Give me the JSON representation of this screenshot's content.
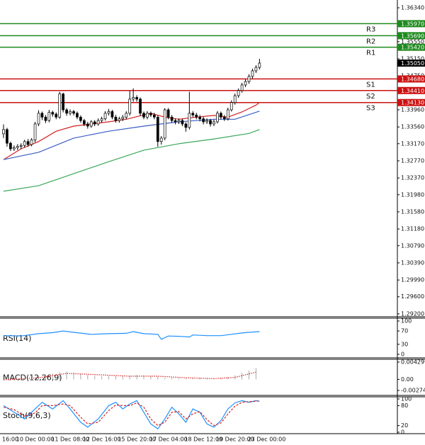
{
  "chart_data": [
    {
      "type": "candlestick",
      "categories": [
        "16:00",
        null,
        null,
        null,
        "10 Dec 00:00",
        null,
        null,
        null,
        null,
        null,
        null,
        null,
        null,
        null,
        "11 Dec 08:00",
        null,
        null,
        null,
        null,
        null,
        null,
        null,
        null,
        "12 Dec 16:00",
        null,
        null,
        null,
        null,
        null,
        null,
        null,
        null,
        null,
        "15 Dec 20:00",
        null,
        null,
        null,
        null,
        null,
        null,
        null,
        null,
        "17 Dec 04:00",
        null,
        null,
        null,
        null,
        null,
        null,
        null,
        null,
        null,
        "18 Dec 12:00",
        null,
        null,
        null,
        null,
        null,
        null,
        null,
        null,
        "19 Dec 20:00",
        null,
        null,
        null,
        null,
        null,
        null,
        null,
        null,
        "23 Dec 00:00",
        null,
        null,
        null
      ],
      "open": [
        1.334,
        1.335,
        1.3318,
        1.3305,
        1.3308,
        1.3311,
        1.3313,
        1.3322,
        1.3315,
        1.3326,
        1.3363,
        1.3388,
        1.3379,
        1.3371,
        1.339,
        1.3386,
        1.3379,
        1.3433,
        1.3396,
        1.3388,
        1.3392,
        1.3388,
        1.3379,
        1.3371,
        1.3363,
        1.3358,
        1.3368,
        1.3363,
        1.3371,
        1.3375,
        1.3388,
        1.3392,
        1.3379,
        1.3371,
        1.3375,
        1.3379,
        1.3388,
        1.3421,
        1.3425,
        1.3421,
        1.3388,
        1.3379,
        1.3388,
        1.3384,
        1.3379,
        1.3322,
        1.333,
        1.3396,
        1.3379,
        1.3371,
        1.3368,
        1.3371,
        1.3363,
        1.3355,
        1.3388,
        1.3384,
        1.3379,
        1.3375,
        1.3368,
        1.3371,
        1.3363,
        1.3368,
        1.3388,
        1.3379,
        1.3375,
        1.3396,
        1.3413,
        1.3429,
        1.3441,
        1.3454,
        1.3462,
        1.3474,
        1.3487,
        1.3495
      ],
      "high": [
        1.3362,
        1.3354,
        1.3322,
        1.3313,
        1.3316,
        1.3318,
        1.3326,
        1.3328,
        1.333,
        1.3368,
        1.3395,
        1.3392,
        1.3384,
        1.3396,
        1.3394,
        1.339,
        1.3438,
        1.3436,
        1.34,
        1.3397,
        1.3396,
        1.3392,
        1.3383,
        1.3375,
        1.3368,
        1.3372,
        1.3372,
        1.3376,
        1.338,
        1.3393,
        1.3398,
        1.3396,
        1.3384,
        1.338,
        1.3384,
        1.3393,
        1.344,
        1.3446,
        1.343,
        1.3425,
        1.3392,
        1.3393,
        1.3392,
        1.3389,
        1.3383,
        1.3335,
        1.34,
        1.34,
        1.3384,
        1.3376,
        1.3376,
        1.3375,
        1.3367,
        1.3438,
        1.3393,
        1.3389,
        1.3384,
        1.338,
        1.3376,
        1.3375,
        1.3373,
        1.3393,
        1.3392,
        1.3384,
        1.3401,
        1.3418,
        1.3434,
        1.3446,
        1.3459,
        1.3467,
        1.3479,
        1.3492,
        1.35,
        1.3515
      ],
      "low": [
        1.333,
        1.331,
        1.33,
        1.33,
        1.3302,
        1.3305,
        1.3308,
        1.331,
        1.3311,
        1.332,
        1.3358,
        1.3372,
        1.3365,
        1.3367,
        1.338,
        1.3374,
        1.3375,
        1.339,
        1.3382,
        1.3383,
        1.3383,
        1.3374,
        1.3366,
        1.3358,
        1.3352,
        1.3354,
        1.3358,
        1.3359,
        1.3366,
        1.3371,
        1.3383,
        1.3374,
        1.3366,
        1.3366,
        1.337,
        1.3374,
        1.3383,
        1.3415,
        1.3415,
        1.3382,
        1.3374,
        1.3374,
        1.3379,
        1.3374,
        1.331,
        1.3315,
        1.3325,
        1.3374,
        1.3366,
        1.3362,
        1.3363,
        1.3358,
        1.3345,
        1.335,
        1.3379,
        1.3374,
        1.3369,
        1.3362,
        1.3363,
        1.3357,
        1.3358,
        1.3364,
        1.3374,
        1.337,
        1.3371,
        1.3392,
        1.3408,
        1.3424,
        1.3436,
        1.3449,
        1.3457,
        1.3469,
        1.3482,
        1.349
      ],
      "close": [
        1.335,
        1.3318,
        1.3305,
        1.3308,
        1.3311,
        1.3313,
        1.3322,
        1.3315,
        1.3326,
        1.3363,
        1.3388,
        1.3379,
        1.3371,
        1.339,
        1.3386,
        1.3379,
        1.3433,
        1.3396,
        1.3388,
        1.3392,
        1.3388,
        1.3379,
        1.3371,
        1.3363,
        1.3358,
        1.3368,
        1.3363,
        1.3371,
        1.3375,
        1.3388,
        1.3392,
        1.3379,
        1.3371,
        1.3375,
        1.3379,
        1.3388,
        1.3421,
        1.3425,
        1.3421,
        1.3388,
        1.3379,
        1.3388,
        1.3384,
        1.3379,
        1.3322,
        1.333,
        1.3396,
        1.3379,
        1.3371,
        1.3368,
        1.3371,
        1.3363,
        1.3355,
        1.3388,
        1.3384,
        1.3379,
        1.3375,
        1.3368,
        1.3371,
        1.3363,
        1.3368,
        1.3388,
        1.3379,
        1.3375,
        1.3396,
        1.3413,
        1.3429,
        1.3441,
        1.3454,
        1.3462,
        1.3474,
        1.3487,
        1.3495,
        1.3505
      ],
      "overlays": [
        {
          "color": "#d42020",
          "x": [
            0,
            5,
            10,
            15,
            20,
            25,
            30,
            35,
            40,
            42,
            46,
            50,
            55,
            60,
            64,
            68,
            72,
            73
          ],
          "values": [
            1.328,
            1.3305,
            1.3322,
            1.3346,
            1.3358,
            1.3363,
            1.3368,
            1.3374,
            1.3384,
            1.3388,
            1.3379,
            1.3374,
            1.3379,
            1.3383,
            1.3379,
            1.3391,
            1.3407,
            1.3413
          ]
        },
        {
          "color": "#3a5fc4",
          "x": [
            0,
            10,
            20,
            30,
            40,
            50,
            60,
            66,
            73
          ],
          "values": [
            1.328,
            1.3297,
            1.333,
            1.3346,
            1.3358,
            1.3368,
            1.3374,
            1.3374,
            1.3393
          ]
        },
        {
          "color": "#3aa85a",
          "x": [
            0,
            10,
            20,
            30,
            40,
            50,
            60,
            70,
            73
          ],
          "values": [
            1.3206,
            1.3219,
            1.3247,
            1.3275,
            1.3302,
            1.3317,
            1.3328,
            1.3341,
            1.335
          ]
        }
      ],
      "levels": [
        {
          "name": "R3",
          "value": 1.3597,
          "label": "1.35970",
          "color": "#1e8a1e"
        },
        {
          "name": "R2",
          "value": 1.3569,
          "label": "1.35690",
          "color": "#1e8a1e"
        },
        {
          "name": "R1",
          "value": 1.3542,
          "label": "1.35420",
          "color": "#1e8a1e"
        },
        {
          "name": "S1",
          "value": 1.3468,
          "label": "1.34680",
          "color": "#cc1111"
        },
        {
          "name": "S2",
          "value": 1.3441,
          "label": "1.34410",
          "color": "#cc1111"
        },
        {
          "name": "S3",
          "value": 1.3413,
          "label": "1.34130",
          "color": "#cc1111"
        }
      ],
      "current_price": {
        "value": 1.3505,
        "label": "1.35050"
      },
      "ylim": [
        1.29133,
        1.36522
      ],
      "yticks": [
        {
          "value": 1.3634,
          "label": "1.36340"
        },
        {
          "value": 1.3555,
          "label": "1.35550"
        },
        {
          "value": 1.3515,
          "label": "1.35150"
        },
        {
          "value": 1.3475,
          "label": "1.34750"
        },
        {
          "value": 1.3396,
          "label": "1.33960"
        },
        {
          "value": 1.3356,
          "label": "1.33560"
        },
        {
          "value": 1.3317,
          "label": "1.33170"
        },
        {
          "value": 1.3277,
          "label": "1.32770"
        },
        {
          "value": 1.3237,
          "label": "1.32370"
        },
        {
          "value": 1.3198,
          "label": "1.31980"
        },
        {
          "value": 1.3158,
          "label": "1.31580"
        },
        {
          "value": 1.3118,
          "label": "1.31180"
        },
        {
          "value": 1.3079,
          "label": "1.30790"
        },
        {
          "value": 1.3039,
          "label": "1.30390"
        },
        {
          "value": 1.2999,
          "label": "1.29990"
        },
        {
          "value": 1.296,
          "label": "1.29600"
        },
        {
          "value": 1.292,
          "label": "1.29200"
        }
      ]
    },
    {
      "type": "line",
      "title": "RSI(14)",
      "series": [
        {
          "color": "#1e90ff",
          "style": "solid",
          "x": [
            0,
            5,
            10,
            14,
            17,
            20,
            25,
            30,
            35,
            37,
            40,
            44,
            45,
            47,
            50,
            53,
            54,
            58,
            62,
            65,
            68,
            70,
            73
          ],
          "values": [
            56,
            55,
            62,
            65,
            70,
            66,
            60,
            62,
            63,
            68,
            62,
            60,
            45,
            55,
            54,
            52,
            58,
            56,
            56,
            60,
            64,
            66,
            68
          ]
        }
      ],
      "ylim": [
        -10.6,
        108.5
      ],
      "yticks": [
        100,
        70,
        30,
        0
      ]
    },
    {
      "type": "macd",
      "title": "MACD(12,26,9)",
      "bars": {
        "color": "#a8a8a8",
        "x": [
          0,
          2,
          4,
          6,
          8,
          10,
          12,
          14,
          16,
          18,
          20,
          22,
          24,
          26,
          28,
          30,
          32,
          34,
          36,
          38,
          40,
          42,
          44,
          46,
          48,
          50,
          52,
          54,
          56,
          58,
          60,
          62,
          64,
          66,
          68,
          70,
          72
        ],
        "values": [
          -0.0002,
          -0.0003,
          -0.0002,
          0,
          0.0003,
          0.0008,
          0.0012,
          0.0015,
          0.0018,
          0.0019,
          0.0017,
          0.0014,
          0.0011,
          0.0009,
          0.0008,
          0.0008,
          0.0008,
          0.0008,
          0.0009,
          0.0011,
          0.0011,
          0.0009,
          0.0007,
          0.0004,
          0.0004,
          0.0003,
          0.0002,
          0.0003,
          0.0003,
          0.0002,
          0.0002,
          0.0003,
          0.0005,
          0.001,
          0.0016,
          0.0022,
          0.0028
        ]
      },
      "series": [
        {
          "color": "#d42020",
          "style": "dotted",
          "x": [
            0,
            10,
            18,
            26,
            36,
            44,
            52,
            60,
            66,
            72
          ],
          "values": [
            -0.0001,
            0.0004,
            0.0015,
            0.0012,
            0.0008,
            0.0008,
            0.0004,
            0.0002,
            0.0005,
            0.0018
          ]
        }
      ],
      "ylim": [
        -0.00398,
        0.005
      ],
      "yticks": [
        0.004299,
        {
          "value": 0,
          "label": "0.00"
        },
        -0.002744
      ]
    },
    {
      "type": "line",
      "title": "Stoch(9,6,3)",
      "series": [
        {
          "color": "#1e90ff",
          "style": "solid",
          "x": [
            0,
            3,
            6,
            9,
            11,
            14,
            17,
            19,
            22,
            24,
            27,
            30,
            32,
            34,
            36,
            38,
            40,
            42,
            44,
            46,
            48,
            50,
            52,
            54,
            56,
            58,
            60,
            62,
            64,
            66,
            68,
            70,
            72,
            73
          ],
          "values": [
            80,
            60,
            40,
            70,
            90,
            70,
            95,
            70,
            30,
            15,
            40,
            80,
            90,
            70,
            85,
            95,
            60,
            25,
            10,
            40,
            75,
            55,
            30,
            70,
            60,
            25,
            15,
            35,
            70,
            88,
            95,
            90,
            95,
            93
          ]
        },
        {
          "color": "#d42020",
          "style": "dashed",
          "x": [
            0,
            3,
            6,
            9,
            11,
            14,
            17,
            19,
            22,
            24,
            27,
            30,
            32,
            34,
            36,
            38,
            40,
            42,
            44,
            46,
            48,
            50,
            52,
            54,
            56,
            58,
            60,
            62,
            64,
            66,
            68,
            70,
            72,
            73
          ],
          "values": [
            75,
            68,
            48,
            58,
            80,
            80,
            85,
            80,
            45,
            25,
            30,
            65,
            82,
            80,
            80,
            88,
            75,
            40,
            20,
            30,
            60,
            62,
            40,
            55,
            62,
            38,
            20,
            28,
            55,
            78,
            90,
            92,
            93,
            94
          ]
        }
      ],
      "ylim": [
        -4.3,
        106.4
      ],
      "yticks": [
        100,
        80,
        20,
        0
      ]
    }
  ]
}
